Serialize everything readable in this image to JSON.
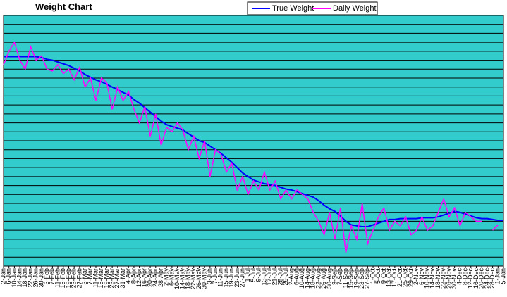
{
  "chart_data": {
    "type": "line",
    "title": "Weight Chart",
    "categories": [
      "2-Jan",
      "6-Jan",
      "10-Jan",
      "14-Jan",
      "18-Jan",
      "22-Jan",
      "26-Jan",
      "30-Jan",
      "3-Feb",
      "7-Feb",
      "11-Feb",
      "15-Feb",
      "19-Feb",
      "23-Feb",
      "27-Feb",
      "3-Mar",
      "7-Mar",
      "11-Mar",
      "15-Mar",
      "19-Mar",
      "23-Mar",
      "27-Mar",
      "31-Mar",
      "4-Apr",
      "8-Apr",
      "12-Apr",
      "16-Apr",
      "20-Apr",
      "24-Apr",
      "28-Apr",
      "2-May",
      "6-May",
      "10-May",
      "14-May",
      "18-May",
      "22-May",
      "26-May",
      "30-May",
      "3-Jun",
      "7-Jun",
      "11-Jun",
      "15-Jun",
      "19-Jun",
      "23-Jun",
      "27-Jun",
      "1-Jul",
      "5-Jul",
      "9-Jul",
      "13-Jul",
      "17-Jul",
      "21-Jul",
      "25-Jul",
      "29-Jul",
      "2-Aug",
      "6-Aug",
      "10-Aug",
      "14-Aug",
      "18-Aug",
      "22-Aug",
      "26-Aug",
      "30-Aug",
      "3-Sep",
      "7-Sep",
      "11-Sep",
      "15-Sep",
      "19-Sep",
      "23-Sep",
      "27-Sep",
      "1-Oct",
      "5-Oct",
      "9-Oct",
      "13-Oct",
      "17-Oct",
      "21-Oct",
      "25-Oct",
      "29-Oct",
      "2-Nov",
      "6-Nov",
      "10-Nov",
      "14-Nov",
      "18-Nov",
      "22-Nov",
      "26-Nov",
      "30-Nov",
      "4-Dec",
      "8-Dec",
      "12-Dec",
      "16-Dec",
      "20-Dec",
      "24-Dec",
      "28-Dec",
      "1-Jan",
      "5-Jan"
    ],
    "series": [
      {
        "name": "True Weight",
        "color": "#0000ff",
        "values": [
          23.4,
          23.4,
          23.4,
          23.4,
          23.4,
          23.4,
          23.4,
          23.3,
          23.1,
          23,
          22.8,
          22.6,
          22.4,
          22.1,
          21.8,
          21.4,
          21.1,
          20.8,
          20.6,
          20.3,
          20,
          19.7,
          19.4,
          19.1,
          18.6,
          18.2,
          17.7,
          17.2,
          16.7,
          16.2,
          15.8,
          15.6,
          15.4,
          15.2,
          14.8,
          14.4,
          14,
          13.8,
          13.4,
          13,
          12.6,
          12.1,
          11.6,
          11,
          10.4,
          10,
          9.6,
          9.4,
          9.2,
          9.1,
          9,
          8.8,
          8.6,
          8.5,
          8.3,
          8.1,
          7.9,
          7.7,
          7.3,
          6.8,
          6.4,
          6.1,
          5.6,
          5,
          4.6,
          4.5,
          4.4,
          4.4,
          4.6,
          4.8,
          5,
          5.2,
          5.2,
          5.3,
          5.3,
          5.3,
          5.3,
          5.4,
          5.4,
          5.4,
          5.5,
          5.7,
          5.9,
          6.1,
          6,
          5.8,
          5.6,
          5.4,
          5.3,
          5.3,
          5.2,
          5.1,
          5.1
        ]
      },
      {
        "name": "Daily Weight",
        "color": "#ff00ff",
        "values": [
          22.5,
          24,
          25,
          23,
          22,
          24.5,
          23,
          23.5,
          22,
          21.8,
          22.5,
          21.5,
          22,
          20.8,
          22.2,
          20,
          21,
          18.5,
          21,
          20.5,
          17.5,
          20,
          18.5,
          19.5,
          17.5,
          16,
          17.8,
          14.5,
          17,
          13.5,
          15.5,
          15,
          16,
          15.2,
          13,
          14.5,
          12,
          14,
          10,
          13,
          12.5,
          10.5,
          11.5,
          8.5,
          10,
          8,
          9.5,
          8.5,
          10.5,
          8.5,
          9.5,
          7.5,
          8.5,
          7.5,
          8.5,
          8,
          7.5,
          6,
          5,
          3.5,
          6,
          3,
          6.5,
          1.5,
          4.5,
          3,
          7,
          2.5,
          4,
          5.5,
          6.5,
          4,
          5,
          4.5,
          5.5,
          3.5,
          4,
          5.5,
          4,
          4.5,
          6,
          7.5,
          5.5,
          6.5,
          4.5,
          6,
          5.5,
          5,
          5,
          null,
          4,
          4.6,
          null
        ]
      }
    ],
    "ylim": [
      0,
      28
    ],
    "yticks": [
      0,
      1,
      2,
      3,
      4,
      5,
      6,
      7,
      8,
      9,
      10,
      11,
      12,
      13,
      14,
      15,
      16,
      17,
      18,
      19,
      20,
      21,
      22,
      23,
      24,
      25,
      26,
      27,
      28
    ],
    "grid": true,
    "plot_color": "#33cccc",
    "legend": "top"
  }
}
